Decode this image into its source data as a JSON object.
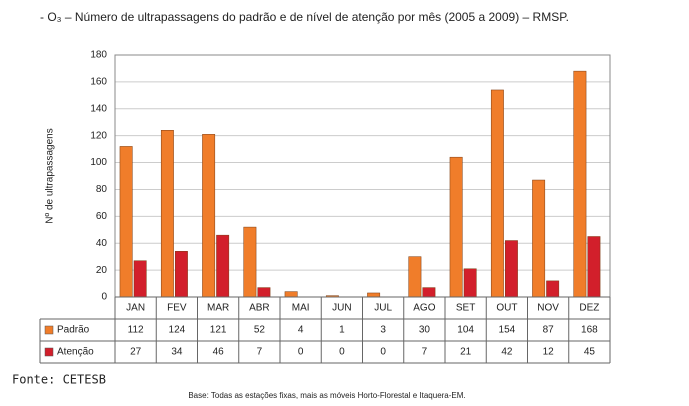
{
  "chart_data": {
    "type": "bar",
    "title": "- O₃ – Número de ultrapassagens do padrão e de nível de atenção por mês (2005 a 2009) – RMSP.",
    "y_label": "Nº de ultrapassagens",
    "categories": [
      "JAN",
      "FEV",
      "MAR",
      "ABR",
      "MAI",
      "JUN",
      "JUL",
      "AGO",
      "SET",
      "OUT",
      "NOV",
      "DEZ"
    ],
    "series": [
      {
        "name": "Padrão",
        "color": "#f07d2a",
        "values": [
          112,
          124,
          121,
          52,
          4,
          1,
          3,
          30,
          104,
          154,
          87,
          168
        ]
      },
      {
        "name": "Atenção",
        "color": "#d21f2b",
        "values": [
          27,
          34,
          46,
          7,
          0,
          0,
          0,
          7,
          21,
          42,
          12,
          45
        ]
      }
    ],
    "ylim": [
      0,
      180
    ],
    "yticks": [
      0,
      20,
      40,
      60,
      80,
      100,
      120,
      140,
      160,
      180
    ],
    "grid": true,
    "source": "Fonte: CETESB",
    "note": "Base: Todas as estações fixas, mais as móveis Horto-Florestal e Itaquera-EM."
  }
}
